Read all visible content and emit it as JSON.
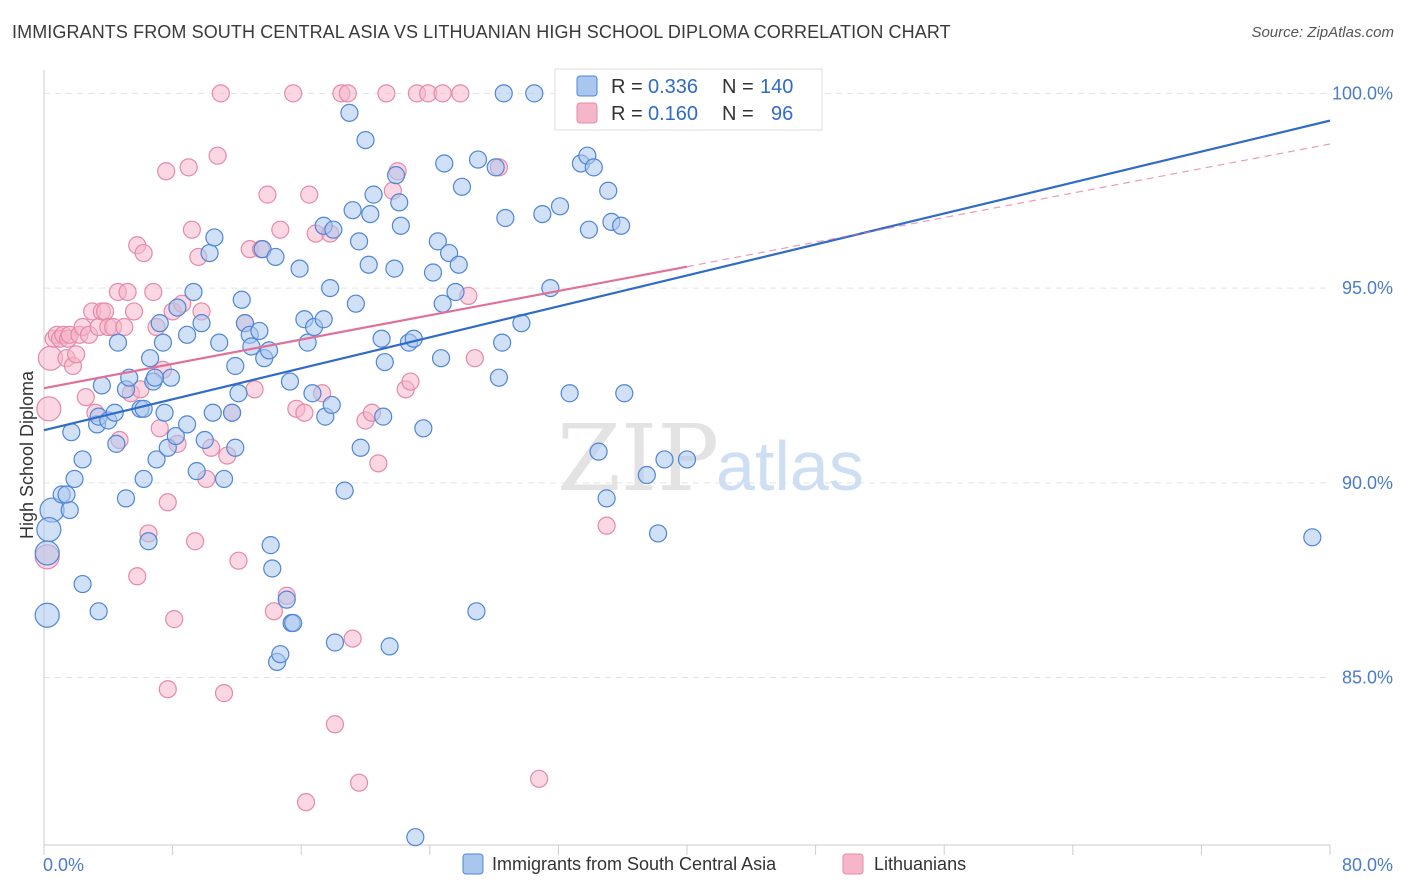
{
  "title": "IMMIGRANTS FROM SOUTH CENTRAL ASIA VS LITHUANIAN HIGH SCHOOL DIPLOMA CORRELATION CHART",
  "source": "Source: ZipAtlas.com",
  "watermark": {
    "zip": "ZIP",
    "atlas": "atlas"
  },
  "colors": {
    "blue_fill": "#a9c6ef",
    "blue_stroke": "#4f86d6",
    "blue_line": "#2f6bc8",
    "pink_fill": "#f6b6ca",
    "pink_stroke": "#e58aa8",
    "pink_line": "#e0709a",
    "tick_text": "#4a7cc8",
    "grid": "#e3e3e3"
  },
  "legend": {
    "rows": [
      {
        "r_label": "R = ",
        "r_value": "0.336",
        "n_label": "N = ",
        "n_value": "140"
      },
      {
        "r_label": "R = ",
        "r_value": "0.160",
        "n_label": "N = ",
        "n_value": "96"
      }
    ]
  },
  "chart_data": {
    "type": "scatter",
    "title": "IMMIGRANTS FROM SOUTH CENTRAL ASIA VS LITHUANIAN HIGH SCHOOL DIPLOMA CORRELATION CHART",
    "xlabel": "",
    "ylabel": "High School Diploma",
    "xlim": [
      0,
      80
    ],
    "ylim": [
      80.7,
      100.6
    ],
    "x_tick_labels": [
      "0.0%",
      "80.0%"
    ],
    "y_ticks": [
      85,
      90,
      95,
      100
    ],
    "y_tick_labels": [
      "85.0%",
      "90.0%",
      "95.0%",
      "100.0%"
    ],
    "grid": true,
    "legend_position": "top",
    "series": [
      {
        "name": "Immigrants from South Central Asia",
        "color": "#a9c6ef",
        "r": 0.336,
        "n": 140,
        "trend": {
          "x": [
            0,
            80
          ],
          "y": [
            91.35,
            99.3
          ]
        },
        "points": [
          [
            0.5,
            89.3
          ],
          [
            0.3,
            88.8
          ],
          [
            0.2,
            88.2
          ],
          [
            0.2,
            86.6
          ],
          [
            1.1,
            89.7
          ],
          [
            1.6,
            89.3
          ],
          [
            1.4,
            89.7
          ],
          [
            1.9,
            90.1
          ],
          [
            1.7,
            91.3
          ],
          [
            2.4,
            87.4
          ],
          [
            2.4,
            90.6
          ],
          [
            3.3,
            91.5
          ],
          [
            3.4,
            91.7
          ],
          [
            3.6,
            92.5
          ],
          [
            4.0,
            91.6
          ],
          [
            3.4,
            86.7
          ],
          [
            4.5,
            91.0
          ],
          [
            4.4,
            91.8
          ],
          [
            4.6,
            93.6
          ],
          [
            5.1,
            92.4
          ],
          [
            5.1,
            89.6
          ],
          [
            5.3,
            92.7
          ],
          [
            6.0,
            91.9
          ],
          [
            6.2,
            91.9
          ],
          [
            6.2,
            90.1
          ],
          [
            6.5,
            88.5
          ],
          [
            6.6,
            93.2
          ],
          [
            6.8,
            92.6
          ],
          [
            7.0,
            90.6
          ],
          [
            7.2,
            94.1
          ],
          [
            7.4,
            93.6
          ],
          [
            7.5,
            91.8
          ],
          [
            7.7,
            90.9
          ],
          [
            7.9,
            92.7
          ],
          [
            8.2,
            91.2
          ],
          [
            8.3,
            94.5
          ],
          [
            8.9,
            93.8
          ],
          [
            8.9,
            91.5
          ],
          [
            9.3,
            94.9
          ],
          [
            9.5,
            90.3
          ],
          [
            9.8,
            94.1
          ],
          [
            10.0,
            91.1
          ],
          [
            10.3,
            95.9
          ],
          [
            10.5,
            91.8
          ],
          [
            10.6,
            96.3
          ],
          [
            11.2,
            90.1
          ],
          [
            11.7,
            91.8
          ],
          [
            11.9,
            90.9
          ],
          [
            11.9,
            93.0
          ],
          [
            12.1,
            92.3
          ],
          [
            12.3,
            94.7
          ],
          [
            12.5,
            94.1
          ],
          [
            12.8,
            93.8
          ],
          [
            12.9,
            93.5
          ],
          [
            13.4,
            93.9
          ],
          [
            13.6,
            96.0
          ],
          [
            13.7,
            93.2
          ],
          [
            14.0,
            93.4
          ],
          [
            14.1,
            88.4
          ],
          [
            14.2,
            87.8
          ],
          [
            14.4,
            95.8
          ],
          [
            14.5,
            85.4
          ],
          [
            14.7,
            85.6
          ],
          [
            15.3,
            92.6
          ],
          [
            15.1,
            87.0
          ],
          [
            15.4,
            86.4
          ],
          [
            15.5,
            86.4
          ],
          [
            15.9,
            95.5
          ],
          [
            16.2,
            94.2
          ],
          [
            16.4,
            93.6
          ],
          [
            16.7,
            92.3
          ],
          [
            16.8,
            94.0
          ],
          [
            17.4,
            94.2
          ],
          [
            17.4,
            96.6
          ],
          [
            17.5,
            91.7
          ],
          [
            17.8,
            95.0
          ],
          [
            17.9,
            92.0
          ],
          [
            18.0,
            96.5
          ],
          [
            18.1,
            85.9
          ],
          [
            18.7,
            89.8
          ],
          [
            19.0,
            99.5
          ],
          [
            19.2,
            97.0
          ],
          [
            19.4,
            94.6
          ],
          [
            19.6,
            96.2
          ],
          [
            19.7,
            90.9
          ],
          [
            20.0,
            98.8
          ],
          [
            20.2,
            95.6
          ],
          [
            20.3,
            96.9
          ],
          [
            20.5,
            97.4
          ],
          [
            21.0,
            93.7
          ],
          [
            21.1,
            91.7
          ],
          [
            21.2,
            93.1
          ],
          [
            21.5,
            85.8
          ],
          [
            21.8,
            95.5
          ],
          [
            21.9,
            97.9
          ],
          [
            22.1,
            97.2
          ],
          [
            22.2,
            96.6
          ],
          [
            22.7,
            93.6
          ],
          [
            23.0,
            93.7
          ],
          [
            23.6,
            91.4
          ],
          [
            24.2,
            95.4
          ],
          [
            24.5,
            96.2
          ],
          [
            24.7,
            93.2
          ],
          [
            24.8,
            94.6
          ],
          [
            24.9,
            98.2
          ],
          [
            25.2,
            95.9
          ],
          [
            25.6,
            94.9
          ],
          [
            25.8,
            95.6
          ],
          [
            26.0,
            97.6
          ],
          [
            27.0,
            98.3
          ],
          [
            28.1,
            98.1
          ],
          [
            28.3,
            92.7
          ],
          [
            28.5,
            93.6
          ],
          [
            28.6,
            100.0
          ],
          [
            28.7,
            96.8
          ],
          [
            29.7,
            94.1
          ],
          [
            30.5,
            100.0
          ],
          [
            31.0,
            96.9
          ],
          [
            32.1,
            97.1
          ],
          [
            32.7,
            92.3
          ],
          [
            33.4,
            98.2
          ],
          [
            33.8,
            98.4
          ],
          [
            34.2,
            98.1
          ],
          [
            33.9,
            96.5
          ],
          [
            34.5,
            90.8
          ],
          [
            35.1,
            97.5
          ],
          [
            35.3,
            96.7
          ],
          [
            35.9,
            96.6
          ],
          [
            35.0,
            89.6
          ],
          [
            36.1,
            92.3
          ],
          [
            37.5,
            90.2
          ],
          [
            38.2,
            88.7
          ],
          [
            38.6,
            90.6
          ],
          [
            40.0,
            90.6
          ],
          [
            26.9,
            86.7
          ],
          [
            23.1,
            80.9
          ],
          [
            78.9,
            88.6
          ],
          [
            31.5,
            95.0
          ],
          [
            10.9,
            93.6
          ],
          [
            6.9,
            92.7
          ]
        ]
      },
      {
        "name": "Lithuanians",
        "color": "#f6b6ca",
        "r": 0.16,
        "n": 96,
        "trend": {
          "x": [
            0,
            40
          ],
          "y": [
            92.43,
            95.55
          ]
        },
        "trend_extension": {
          "x": [
            40,
            80
          ],
          "y": [
            95.55,
            98.7
          ]
        },
        "points": [
          [
            0.2,
            88.1
          ],
          [
            0.3,
            91.9
          ],
          [
            0.4,
            93.2
          ],
          [
            0.6,
            93.7
          ],
          [
            0.8,
            93.8
          ],
          [
            1.0,
            93.7
          ],
          [
            1.2,
            93.8
          ],
          [
            1.4,
            93.2
          ],
          [
            1.5,
            93.7
          ],
          [
            1.6,
            93.8
          ],
          [
            1.8,
            93.0
          ],
          [
            2.0,
            93.3
          ],
          [
            2.2,
            93.8
          ],
          [
            2.4,
            94.0
          ],
          [
            2.6,
            92.2
          ],
          [
            2.8,
            93.8
          ],
          [
            3.0,
            94.4
          ],
          [
            3.2,
            91.8
          ],
          [
            3.4,
            94.0
          ],
          [
            3.6,
            94.4
          ],
          [
            3.8,
            94.4
          ],
          [
            4.0,
            94.0
          ],
          [
            4.3,
            94.0
          ],
          [
            4.6,
            94.9
          ],
          [
            4.7,
            91.1
          ],
          [
            5.0,
            94.0
          ],
          [
            5.2,
            94.9
          ],
          [
            5.4,
            92.3
          ],
          [
            5.6,
            94.4
          ],
          [
            5.8,
            96.1
          ],
          [
            6.0,
            92.4
          ],
          [
            6.2,
            95.9
          ],
          [
            6.5,
            88.7
          ],
          [
            6.8,
            94.9
          ],
          [
            7.0,
            94.0
          ],
          [
            7.2,
            91.4
          ],
          [
            7.4,
            92.9
          ],
          [
            7.6,
            98.0
          ],
          [
            7.7,
            89.5
          ],
          [
            8.0,
            94.4
          ],
          [
            8.3,
            91.0
          ],
          [
            8.6,
            94.6
          ],
          [
            9.0,
            98.1
          ],
          [
            9.2,
            96.5
          ],
          [
            9.4,
            88.5
          ],
          [
            9.6,
            95.8
          ],
          [
            9.8,
            94.4
          ],
          [
            10.1,
            90.1
          ],
          [
            10.4,
            90.9
          ],
          [
            10.8,
            98.4
          ],
          [
            11.0,
            100.0
          ],
          [
            11.4,
            90.7
          ],
          [
            11.7,
            91.8
          ],
          [
            12.1,
            88.0
          ],
          [
            12.5,
            94.1
          ],
          [
            12.8,
            96.0
          ],
          [
            13.1,
            92.4
          ],
          [
            13.5,
            96.0
          ],
          [
            13.9,
            97.4
          ],
          [
            14.3,
            86.7
          ],
          [
            14.7,
            96.5
          ],
          [
            15.1,
            87.1
          ],
          [
            15.5,
            100.0
          ],
          [
            15.7,
            91.9
          ],
          [
            16.2,
            91.8
          ],
          [
            16.5,
            97.4
          ],
          [
            16.9,
            96.4
          ],
          [
            17.3,
            92.3
          ],
          [
            17.8,
            96.4
          ],
          [
            18.1,
            83.8
          ],
          [
            18.5,
            100.0
          ],
          [
            18.9,
            100.0
          ],
          [
            19.2,
            86.0
          ],
          [
            19.6,
            82.3
          ],
          [
            20.0,
            91.6
          ],
          [
            20.4,
            91.8
          ],
          [
            20.8,
            90.5
          ],
          [
            21.3,
            100.0
          ],
          [
            21.7,
            97.5
          ],
          [
            22.0,
            98.0
          ],
          [
            22.5,
            92.4
          ],
          [
            22.8,
            92.6
          ],
          [
            23.2,
            100.0
          ],
          [
            23.9,
            100.0
          ],
          [
            24.8,
            100.0
          ],
          [
            25.9,
            100.0
          ],
          [
            26.8,
            93.2
          ],
          [
            26.4,
            94.8
          ],
          [
            28.3,
            98.1
          ],
          [
            30.8,
            82.4
          ],
          [
            35.0,
            88.9
          ],
          [
            8.1,
            86.5
          ],
          [
            16.3,
            81.8
          ],
          [
            11.2,
            84.6
          ],
          [
            5.8,
            87.6
          ],
          [
            7.7,
            84.7
          ]
        ]
      }
    ]
  }
}
